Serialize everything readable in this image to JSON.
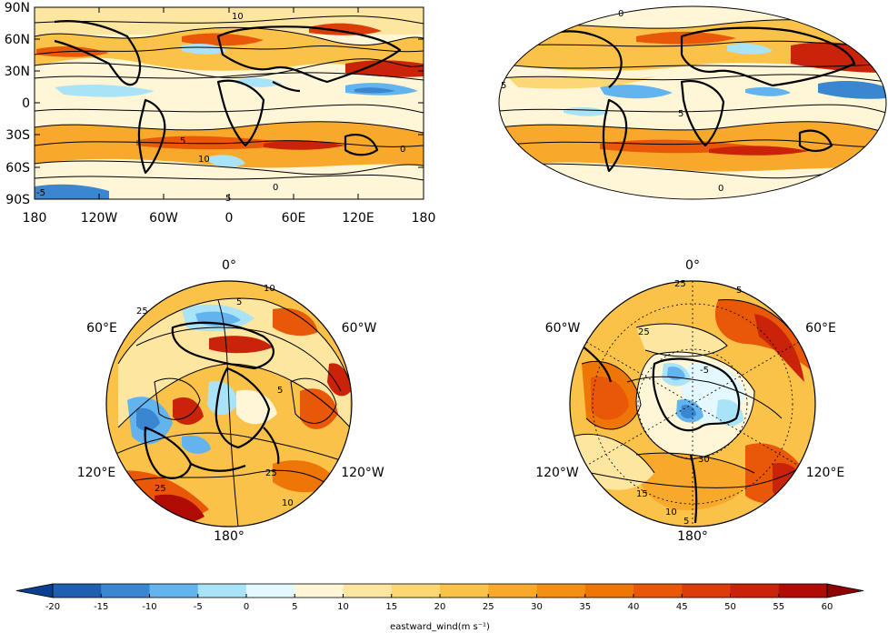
{
  "colorbar": {
    "label": "eastward_wind(m s$^{-1}$)",
    "display_label": "eastward_wind(m s⁻¹)",
    "ticks": [
      "-20",
      "-15",
      "-10",
      "-5",
      "0",
      "5",
      "10",
      "15",
      "20",
      "25",
      "30",
      "35",
      "40",
      "45",
      "50",
      "55",
      "60"
    ],
    "colors": [
      "#1f5fb0",
      "#3a86d1",
      "#62b3ee",
      "#a8e3f8",
      "#e3f8ff",
      "#fff6d8",
      "#fde6a0",
      "#fdd676",
      "#fbc24a",
      "#f8a92b",
      "#f38f13",
      "#ee7607",
      "#e85808",
      "#dc3c0a",
      "#c92309",
      "#b10b06",
      "#8c0504"
    ],
    "extend": "both"
  },
  "panel_latlon": {
    "y_ticks": [
      "90N",
      "60N",
      "30N",
      "0",
      "30S",
      "60S",
      "90S"
    ],
    "x_ticks": [
      "180",
      "120W",
      "60W",
      "0",
      "60E",
      "120E",
      "180"
    ],
    "contour_labels": [
      "5",
      "10",
      "5",
      "0",
      "0",
      "-5",
      "10"
    ]
  },
  "panel_mollweide": {
    "contour_labels": [
      "5",
      "0",
      "5",
      "0"
    ]
  },
  "panel_north_polar": {
    "labels": {
      "top": "0°",
      "upper_left": "60°E",
      "upper_right": "60°W",
      "lower_left": "120°E",
      "lower_right": "120°W",
      "bottom": "180°"
    },
    "contour_labels": [
      "10",
      "5",
      "25",
      "5",
      "25",
      "10",
      "25"
    ]
  },
  "panel_south_polar": {
    "labels": {
      "top": "0°",
      "upper_left": "60°W",
      "upper_right": "60°E",
      "lower_left": "120°W",
      "lower_right": "120°E",
      "bottom": "180°"
    },
    "contour_labels": [
      "25",
      "5",
      "25",
      "-5",
      "15",
      "30",
      "10",
      "5"
    ]
  }
}
